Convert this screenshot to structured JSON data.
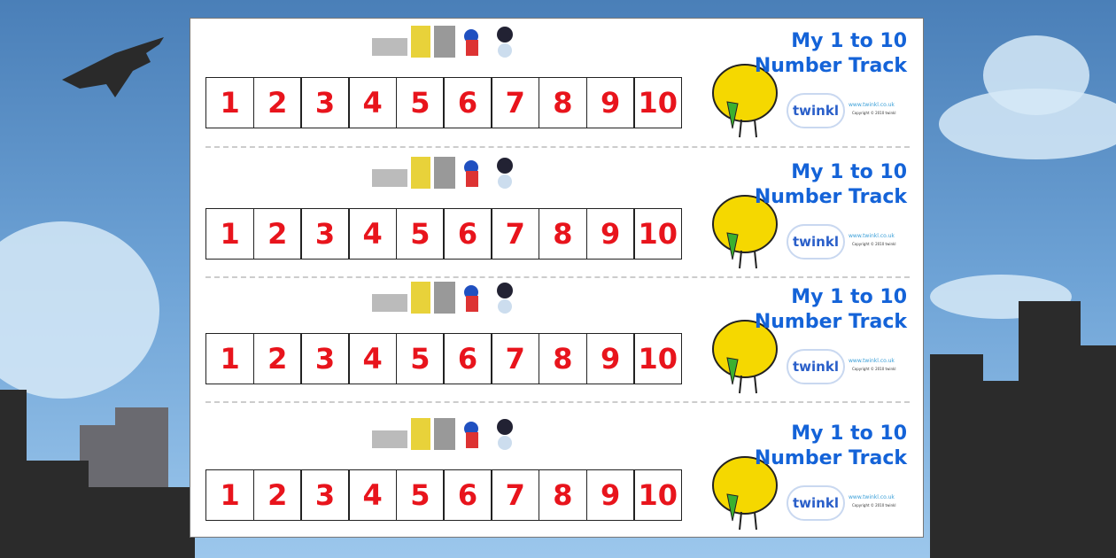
{
  "document": {
    "strips": [
      {
        "title_line1": "My 1 to 10",
        "title_line2": "Number Track",
        "numbers": [
          "1",
          "2",
          "3",
          "4",
          "5",
          "6",
          "7",
          "8",
          "9",
          "10"
        ],
        "logo": "twinkl",
        "url": "www.twinkl.co.uk",
        "copyright": "Copyright © 2010 twinkl"
      },
      {
        "title_line1": "My 1 to 10",
        "title_line2": "Number Track",
        "numbers": [
          "1",
          "2",
          "3",
          "4",
          "5",
          "6",
          "7",
          "8",
          "9",
          "10"
        ],
        "logo": "twinkl",
        "url": "www.twinkl.co.uk",
        "copyright": "Copyright © 2010 twinkl"
      },
      {
        "title_line1": "My 1 to 10",
        "title_line2": "Number Track",
        "numbers": [
          "1",
          "2",
          "3",
          "4",
          "5",
          "6",
          "7",
          "8",
          "9",
          "10"
        ],
        "logo": "twinkl",
        "url": "www.twinkl.co.uk",
        "copyright": "Copyright © 2010 twinkl"
      },
      {
        "title_line1": "My 1 to 10",
        "title_line2": "Number Track",
        "numbers": [
          "1",
          "2",
          "3",
          "4",
          "5",
          "6",
          "7",
          "8",
          "9",
          "10"
        ],
        "logo": "twinkl",
        "url": "www.twinkl.co.uk",
        "copyright": "Copyright © 2010 twinkl"
      }
    ]
  },
  "colors": {
    "number": "#e8141c",
    "title": "#1463d8",
    "sky": "#6ea3d6"
  }
}
